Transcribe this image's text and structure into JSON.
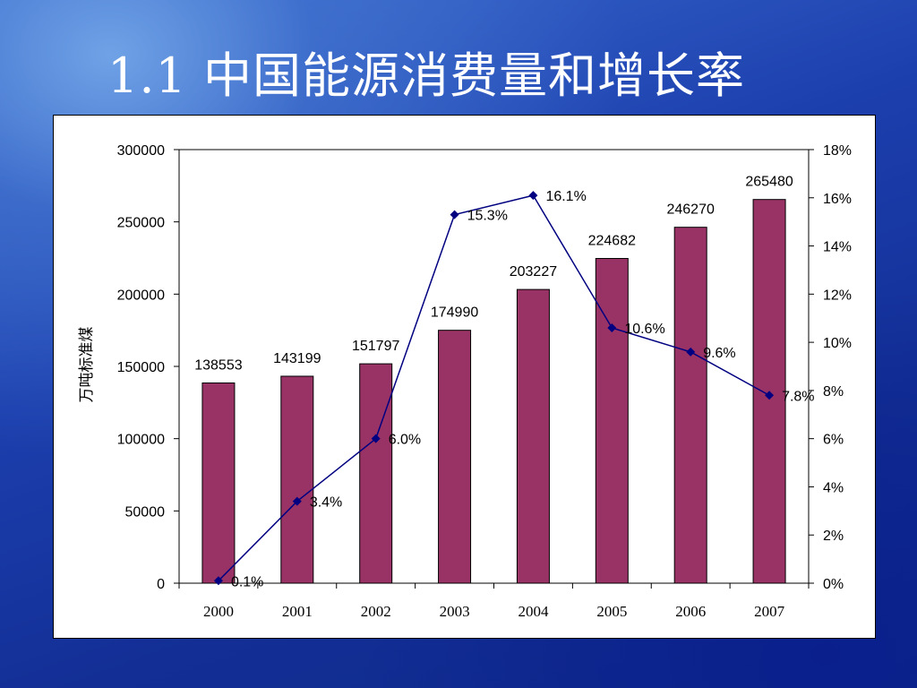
{
  "slide": {
    "title": "1.1 中国能源消费量和增长率"
  },
  "colors": {
    "bar": "#993366",
    "line": "#000080"
  },
  "chart_data": {
    "type": "bar",
    "title": "",
    "categories": [
      "2000",
      "2001",
      "2002",
      "2003",
      "2004",
      "2005",
      "2006",
      "2007"
    ],
    "series": [
      {
        "name": "",
        "type": "bar",
        "axis": "left",
        "values": [
          138553,
          143199,
          151797,
          174990,
          203227,
          224682,
          246270,
          265480
        ],
        "labels": [
          "138553",
          "143199",
          "151797",
          "174990",
          "203227",
          "224682",
          "246270",
          "265480"
        ]
      },
      {
        "name": "",
        "type": "line",
        "axis": "right",
        "values": [
          0.1,
          3.4,
          6.0,
          15.3,
          16.1,
          10.6,
          9.6,
          7.8
        ],
        "labels": [
          "0.1%",
          "3.4%",
          "6.0%",
          "15.3%",
          "16.1%",
          "10.6%",
          "9.6%",
          "7.8%"
        ]
      }
    ],
    "ylabel": "万吨标准煤",
    "y_left": {
      "range": [
        0,
        300000
      ],
      "ticks": [
        0,
        50000,
        100000,
        150000,
        200000,
        250000,
        300000
      ],
      "tick_labels": [
        "0",
        "50000",
        "100000",
        "150000",
        "200000",
        "250000",
        "300000"
      ]
    },
    "y_right": {
      "range": [
        0,
        18
      ],
      "ticks": [
        0,
        2,
        4,
        6,
        8,
        10,
        12,
        14,
        16,
        18
      ],
      "tick_labels": [
        "0%",
        "2%",
        "4%",
        "6%",
        "8%",
        "10%",
        "12%",
        "14%",
        "16%",
        "18%"
      ]
    },
    "grid": false,
    "legend": "none"
  }
}
